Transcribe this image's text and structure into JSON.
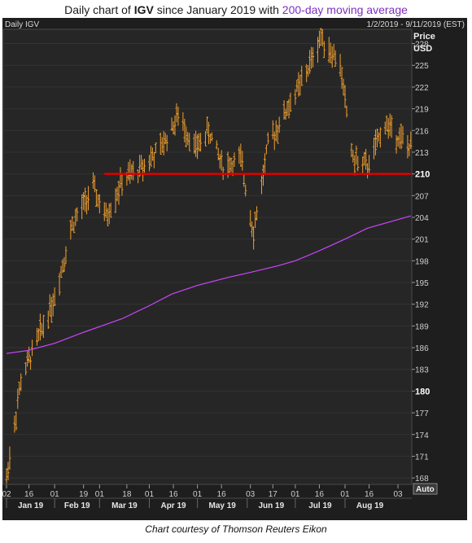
{
  "header": {
    "prefix": "Daily chart of",
    "ticker": "IGV",
    "middle": "since January 2019 with",
    "ma_label": "200-day moving average"
  },
  "panel": {
    "name": "Daily IGV",
    "range": "1/2/2019 - 9/11/2019 (EST)",
    "price_label": "Price",
    "currency": "USD",
    "auto_label": "Auto"
  },
  "caption": "Chart courtesy of Thomson Reuters Eikon",
  "colors": {
    "background": "#1e1e1e",
    "plot": "#262626",
    "price_bars": "#f0a030",
    "moving_average": "#cc44ff",
    "support_line": "#e00000"
  },
  "chart_data": {
    "type": "line",
    "title": "Daily chart of IGV since January 2019 with 200-day moving average",
    "ylabel": "Price USD",
    "ylim": [
      167,
      230.5
    ],
    "y_ticks": [
      168,
      171,
      174,
      177,
      180,
      183,
      186,
      189,
      192,
      195,
      198,
      201,
      204,
      207,
      210,
      213,
      216,
      219,
      222,
      225,
      228
    ],
    "highlighted_ticks": [
      180,
      210
    ],
    "x_ticks": [
      {
        "date": "2019-01-02",
        "label": "02"
      },
      {
        "date": "2019-01-16",
        "label": "16"
      },
      {
        "date": "2019-02-01",
        "label": "01"
      },
      {
        "date": "2019-02-19",
        "label": "19"
      },
      {
        "date": "2019-03-01",
        "label": "01"
      },
      {
        "date": "2019-03-18",
        "label": "18"
      },
      {
        "date": "2019-04-01",
        "label": "01"
      },
      {
        "date": "2019-04-16",
        "label": "16"
      },
      {
        "date": "2019-05-01",
        "label": "01"
      },
      {
        "date": "2019-05-16",
        "label": "16"
      },
      {
        "date": "2019-06-03",
        "label": "03"
      },
      {
        "date": "2019-06-17",
        "label": "17"
      },
      {
        "date": "2019-07-01",
        "label": "01"
      },
      {
        "date": "2019-07-16",
        "label": "16"
      },
      {
        "date": "2019-08-01",
        "label": "01"
      },
      {
        "date": "2019-08-16",
        "label": "16"
      },
      {
        "date": "2019-09-03",
        "label": "03"
      }
    ],
    "month_labels": [
      {
        "date": "2019-01-02",
        "end": "2019-02-01",
        "label": "Jan 19"
      },
      {
        "date": "2019-02-01",
        "end": "2019-03-01",
        "label": "Feb 19"
      },
      {
        "date": "2019-03-01",
        "end": "2019-04-01",
        "label": "Mar 19"
      },
      {
        "date": "2019-04-01",
        "end": "2019-05-01",
        "label": "Apr 19"
      },
      {
        "date": "2019-05-01",
        "end": "2019-06-01",
        "label": "May 19"
      },
      {
        "date": "2019-06-01",
        "end": "2019-07-01",
        "label": "Jun 19"
      },
      {
        "date": "2019-07-01",
        "end": "2019-08-01",
        "label": "Jul 19"
      },
      {
        "date": "2019-08-01",
        "end": "2019-09-01",
        "label": "Aug 19"
      }
    ],
    "series": [
      {
        "name": "IGV",
        "style": "ohlc",
        "x": [
          "2019-01-02",
          "2019-01-11",
          "2019-01-22",
          "2019-02-01",
          "2019-02-12",
          "2019-02-25",
          "2019-03-05",
          "2019-03-15",
          "2019-03-25",
          "2019-04-08",
          "2019-04-19",
          "2019-04-30",
          "2019-05-08",
          "2019-05-17",
          "2019-05-28",
          "2019-06-05",
          "2019-06-14",
          "2019-06-26",
          "2019-07-08",
          "2019-07-17",
          "2019-07-29",
          "2019-08-06",
          "2019-08-15",
          "2019-08-26",
          "2019-09-11"
        ],
        "y": [
          168,
          181.5,
          187.5,
          193,
          203,
          208,
          204,
          209,
          210.5,
          213.5,
          218,
          213.5,
          216,
          211,
          212,
          202,
          214,
          219,
          224,
          229,
          225,
          212,
          211,
          217,
          213.5
        ]
      },
      {
        "name": "200-day moving average",
        "x": [
          "2019-01-02",
          "2019-01-15",
          "2019-02-01",
          "2019-02-20",
          "2019-03-15",
          "2019-04-01",
          "2019-04-15",
          "2019-05-01",
          "2019-05-20",
          "2019-06-03",
          "2019-06-20",
          "2019-07-01",
          "2019-07-15",
          "2019-08-01",
          "2019-08-15",
          "2019-09-11"
        ],
        "y": [
          185.2,
          185.6,
          186.6,
          188.2,
          190,
          191.8,
          193.4,
          194.6,
          195.7,
          196.4,
          197.3,
          198,
          199.3,
          201,
          202.5,
          204.2
        ]
      }
    ],
    "annotations": [
      {
        "type": "horizontal_line",
        "y": 210,
        "x_start": "2019-03-04",
        "x_end": "2019-09-11",
        "color": "#e00000"
      }
    ]
  }
}
